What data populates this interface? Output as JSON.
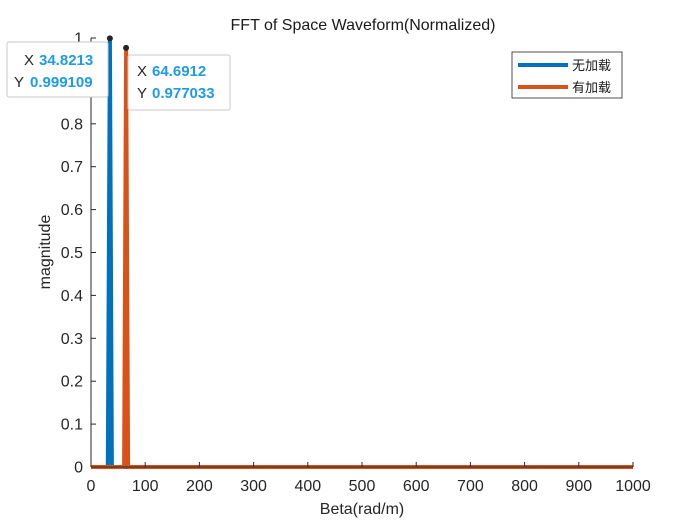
{
  "chart_data": {
    "type": "line",
    "title": "FFT of Space Waveform(Normalized)",
    "xlabel": "Beta(rad/m)",
    "ylabel": "magnitude",
    "xlim": [
      0,
      1000
    ],
    "ylim": [
      0,
      1
    ],
    "xticks": [
      0,
      100,
      200,
      300,
      400,
      500,
      600,
      700,
      800,
      900,
      1000
    ],
    "yticks": [
      0,
      0.1,
      0.2,
      0.3,
      0.4,
      0.5,
      0.6,
      0.7,
      0.8,
      0.9,
      1
    ],
    "xtick_labels": [
      "0",
      "100",
      "200",
      "300",
      "400",
      "500",
      "600",
      "700",
      "800",
      "900",
      "1000"
    ],
    "ytick_labels": [
      "0",
      "0.1",
      "0.2",
      "0.3",
      "0.4",
      "0.5",
      "0.6",
      "0.7",
      "0.8",
      "0.9",
      "1"
    ],
    "grid": false,
    "legend_position": "top-right",
    "series": [
      {
        "name": "无加载",
        "color": "#0072BD",
        "x": [
          0,
          31,
          34.8213,
          38.5,
          1000
        ],
        "y": [
          0,
          0,
          0.999109,
          0,
          0
        ]
      },
      {
        "name": "有加载",
        "color": "#D95319",
        "x": [
          0,
          61,
          64.6912,
          68.4,
          1000
        ],
        "y": [
          0,
          0,
          0.977033,
          0,
          0
        ]
      }
    ],
    "datatips": [
      {
        "series": 0,
        "x_key": "X",
        "x_value": "34.8213",
        "y_key": "Y",
        "y_value": "0.999109",
        "x": 34.8213,
        "y": 0.999109,
        "value_color": "#1E9BE8"
      },
      {
        "series": 1,
        "x_key": "X",
        "x_value": "64.6912",
        "y_key": "Y",
        "y_value": "0.977033",
        "x": 64.6912,
        "y": 0.977033,
        "value_color": "#1E9BE8"
      }
    ]
  }
}
